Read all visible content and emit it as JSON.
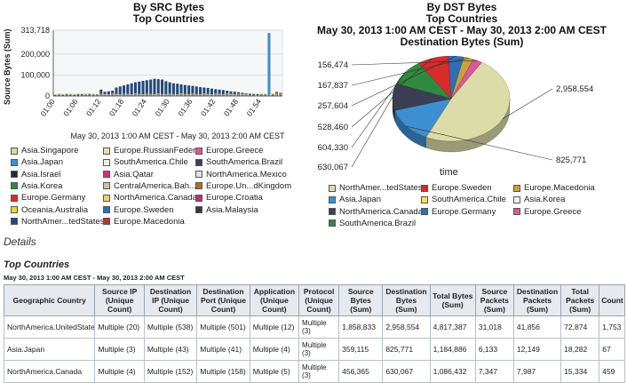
{
  "left_chart": {
    "title": "By SRC Bytes",
    "subtitle": "Top Countries",
    "ylabel": "Source Bytes (Sum)",
    "xlabel": "May 30, 2013 1:00 AM CEST - May 30, 2013 2:00 AM CEST",
    "legend": [
      {
        "label": "Asia.Singapore",
        "color": "#d6dba0"
      },
      {
        "label": "Europe.RussianFeder...",
        "color": "#e8e0b0"
      },
      {
        "label": "Europe.Greece",
        "color": "#e0559a"
      },
      {
        "label": "Asia.Japan",
        "color": "#3d8fd1"
      },
      {
        "label": "SouthAmerica.Chile",
        "color": "#f4f1dc"
      },
      {
        "label": "SouthAmerica.Brazil",
        "color": "#3b3f53"
      },
      {
        "label": "Asia.Israel",
        "color": "#1f2a3c"
      },
      {
        "label": "Asia.Qatar",
        "color": "#d8306f"
      },
      {
        "label": "NorthAmerica.Mexico",
        "color": "#d7e3ee"
      },
      {
        "label": "Asia.Korea",
        "color": "#2e8b3e"
      },
      {
        "label": "CentralAmerica.Bah...",
        "color": "#c9c39f"
      },
      {
        "label": "Europe.Un...dKingdom",
        "color": "#b0701a"
      },
      {
        "label": "Europe.Germany",
        "color": "#d92b2b"
      },
      {
        "label": "NorthAmerica.Canada",
        "color": "#f0d070"
      },
      {
        "label": "Europe.Croatia",
        "color": "#c0306a"
      },
      {
        "label": "Oceania.Australia",
        "color": "#e8d63a"
      },
      {
        "label": "Europe.Sweden",
        "color": "#2f6fb8"
      },
      {
        "label": "Asia.Malaysia",
        "color": "#3a3a3a"
      },
      {
        "label": "NorthAmer...tedStates",
        "color": "#22487c"
      },
      {
        "label": "Europe.Macedonia",
        "color": "#c13030"
      }
    ]
  },
  "right_chart": {
    "title": "By DST Bytes",
    "subtitle": "Top Countries",
    "range": "May 30, 2013 1:00 AM CEST - May 30, 2013 2:00 AM CEST",
    "measure": "Destination Bytes (Sum)",
    "xlabel": "time",
    "legend": [
      {
        "label": "NorthAmer...tedStates",
        "color": "#dcdca8"
      },
      {
        "label": "Europe.Sweden",
        "color": "#d92b2b"
      },
      {
        "label": "Europe.Macedonia",
        "color": "#c8a23a"
      },
      {
        "label": "Asia.Japan",
        "color": "#3d8fd1"
      },
      {
        "label": "SouthAmerica.Chile",
        "color": "#f0e060"
      },
      {
        "label": "Asia.Korea",
        "color": "#f4f4f4"
      },
      {
        "label": "NorthAmerica.Canada",
        "color": "#3b3f53"
      },
      {
        "label": "Europe.Germany",
        "color": "#2f6fb8"
      },
      {
        "label": "Europe.Greece",
        "color": "#e0559a"
      },
      {
        "label": "SouthAmerica.Brazil",
        "color": "#2e8b3e"
      }
    ]
  },
  "chart_data": [
    {
      "type": "bar",
      "title": "By SRC Bytes",
      "subtitle": "Top Countries",
      "ylabel": "Source Bytes (Sum)",
      "xlabel": "May 30, 2013 1:00 AM CEST - May 30, 2013 2:00 AM CEST",
      "yticks": [
        "313,718",
        "200,000",
        "100,000",
        "0"
      ],
      "ytick_values": [
        313718,
        200000,
        100000,
        0
      ],
      "ylim": [
        0,
        313718
      ],
      "xticks": [
        "01:00",
        "01:06",
        "01:12",
        "01:18",
        "01:24",
        "01:30",
        "01:36",
        "01:42",
        "01:48",
        "01:54"
      ],
      "x": [
        "01:00",
        "01:01",
        "01:02",
        "01:03",
        "01:04",
        "01:05",
        "01:06",
        "01:07",
        "01:08",
        "01:09",
        "01:10",
        "01:11",
        "01:12",
        "01:13",
        "01:14",
        "01:15",
        "01:16",
        "01:17",
        "01:18",
        "01:19",
        "01:20",
        "01:21",
        "01:22",
        "01:23",
        "01:24",
        "01:25",
        "01:26",
        "01:27",
        "01:28",
        "01:29",
        "01:30",
        "01:31",
        "01:32",
        "01:33",
        "01:34",
        "01:35",
        "01:36",
        "01:37",
        "01:38",
        "01:39",
        "01:40",
        "01:41",
        "01:42",
        "01:43",
        "01:44",
        "01:45",
        "01:46",
        "01:47",
        "01:48",
        "01:49",
        "01:50",
        "01:51",
        "01:52",
        "01:53",
        "01:54",
        "01:55",
        "01:56",
        "01:57",
        "01:58",
        "01:59"
      ],
      "series": [
        {
          "name": "NorthAmer...tedStates",
          "color": "#22487c",
          "values": [
            3000,
            5000,
            4000,
            6000,
            5000,
            4000,
            6000,
            8000,
            9000,
            7000,
            6000,
            5000,
            30000,
            20000,
            22000,
            25000,
            40000,
            45000,
            50000,
            55000,
            60000,
            65000,
            68000,
            72000,
            75000,
            78000,
            82000,
            80000,
            78000,
            70000,
            65000,
            60000,
            58000,
            55000,
            52000,
            50000,
            48000,
            45000,
            42000,
            40000,
            38000,
            35000,
            32000,
            30000,
            28000,
            25000,
            22000,
            20000,
            18000,
            15000,
            12000,
            10000,
            9000,
            8000,
            7000,
            6000,
            5000,
            4000,
            10000,
            6000
          ]
        },
        {
          "name": "Asia.Japan",
          "color": "#3d8fd1",
          "values": [
            2000,
            3000,
            2500,
            3000,
            2000,
            3000,
            2500,
            2000,
            3000,
            2500,
            2000,
            3000,
            2500,
            2000,
            3000,
            2500,
            2000,
            3000,
            2500,
            2000,
            3000,
            2500,
            2000,
            3000,
            2500,
            2000,
            3000,
            2500,
            2000,
            3000,
            2500,
            2000,
            3000,
            2500,
            2000,
            3000,
            2500,
            2000,
            3000,
            2500,
            2000,
            3000,
            2500,
            2000,
            3000,
            2500,
            2000,
            3000,
            2500,
            2000,
            3000,
            2500,
            2000,
            3000,
            2500,
            2000,
            300000,
            2000,
            3000,
            2500
          ]
        },
        {
          "name": "Europe.Un...dKingdom",
          "color": "#b0701a",
          "values": [
            4000,
            6000,
            5000,
            7000,
            6000,
            5000,
            7000,
            6000,
            5000,
            7000,
            6000,
            5000,
            7000,
            6000,
            5000,
            7000,
            6000,
            5000,
            7000,
            6000,
            5000,
            7000,
            6000,
            5000,
            7000,
            6000,
            5000,
            7000,
            6000,
            5000,
            7000,
            6000,
            5000,
            7000,
            6000,
            5000,
            7000,
            6000,
            5000,
            7000,
            6000,
            5000,
            7000,
            6000,
            5000,
            7000,
            6000,
            5000,
            7000,
            6000,
            5000,
            7000,
            6000,
            5000,
            7000,
            6000,
            5000,
            7000,
            20000,
            15000
          ]
        },
        {
          "name": "Asia.Singapore",
          "color": "#d6dba0",
          "values": [
            8000,
            10000,
            9000,
            12000,
            10000,
            9000,
            11000,
            10000,
            9000,
            12000,
            10000,
            9000,
            11000,
            10000,
            9000,
            12000,
            10000,
            9000,
            11000,
            10000,
            9000,
            12000,
            10000,
            9000,
            11000,
            10000,
            9000,
            12000,
            10000,
            9000,
            11000,
            10000,
            9000,
            12000,
            10000,
            9000,
            11000,
            10000,
            9000,
            12000,
            10000,
            9000,
            11000,
            10000,
            9000,
            12000,
            10000,
            9000,
            11000,
            10000,
            9000,
            12000,
            10000,
            9000,
            11000,
            10000,
            9000,
            12000,
            10000,
            9000
          ]
        }
      ]
    },
    {
      "type": "pie",
      "title": "By DST Bytes",
      "subtitle": "Top Countries",
      "range": "May 30, 2013 1:00 AM CEST - May 30, 2013 2:00 AM CEST",
      "measure": "Destination Bytes (Sum)",
      "xlabel": "time",
      "slices": [
        {
          "name": "NorthAmer...tedStates",
          "value": 2958554,
          "label": "2,958,554",
          "color": "#dcdca8"
        },
        {
          "name": "Asia.Japan",
          "value": 825771,
          "label": "825,771",
          "color": "#3d8fd1"
        },
        {
          "name": "NorthAmerica.Canada",
          "value": 630067,
          "label": "630,067",
          "color": "#3b3f53"
        },
        {
          "name": "SouthAmerica.Brazil",
          "value": 604330,
          "label": "604,330",
          "color": "#2e8b3e"
        },
        {
          "name": "Europe.Sweden",
          "value": 528460,
          "label": "528,460",
          "color": "#d92b2b"
        },
        {
          "name": "Europe.Germany",
          "value": 257604,
          "label": "257,604",
          "color": "#2f6fb8"
        },
        {
          "name": "Europe.Macedonia",
          "value": 167837,
          "label": "167,837",
          "color": "#c8a23a"
        },
        {
          "name": "Europe.Greece",
          "value": 156474,
          "label": "156,474",
          "color": "#e0559a"
        }
      ]
    },
    {
      "type": "table",
      "title": "Top Countries",
      "columns": [
        "Geographic Country",
        "Source IP (Unique Count)",
        "Destination IP (Unique Count)",
        "Destination Port (Unique Count)",
        "Application (Unique Count)",
        "Protocol (Unique Count)",
        "Source Bytes (Sum)",
        "Destination Bytes (Sum)",
        "Total Bytes (Sum)",
        "Source Packets (Sum)",
        "Destination Packets (Sum)",
        "Total Packets (Sum)",
        "Count"
      ],
      "rows": [
        [
          "NorthAmerica.UnitedStates",
          "Multiple (20)",
          "Multiple (538)",
          "Multiple (501)",
          "Multiple (12)",
          "Multiple (3)",
          "1,858,833",
          "2,958,554",
          "4,817,387",
          "31,018",
          "41,856",
          "72,874",
          "1,753"
        ],
        [
          "Asia.Japan",
          "Multiple (3)",
          "Multiple (43)",
          "Multiple (41)",
          "Multiple (4)",
          "Multiple (3)",
          "359,115",
          "825,771",
          "1,184,886",
          "6,133",
          "12,149",
          "18,282",
          "67"
        ],
        [
          "NorthAmerica.Canada",
          "Multiple (4)",
          "Multiple (152)",
          "Multiple (158)",
          "Multiple (5)",
          "Multiple (3)",
          "456,365",
          "630,067",
          "1,086,432",
          "7,347",
          "7,987",
          "15,334",
          "459"
        ]
      ]
    }
  ],
  "details": {
    "heading": "Details",
    "section_title": "Top Countries",
    "range": "May 30, 2013 1:00 AM CEST - May 30, 2013 2:00 AM CEST"
  }
}
